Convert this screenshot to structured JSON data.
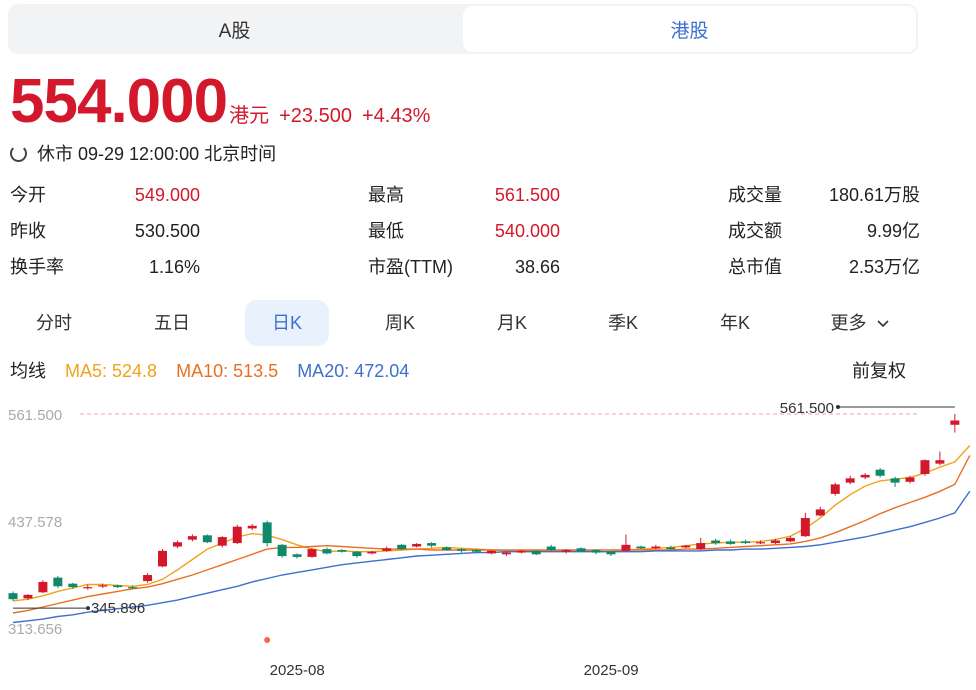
{
  "market_tabs": [
    "A股",
    "港股"
  ],
  "quote": {
    "price": "554.000",
    "currency": "港元",
    "change": "+23.500",
    "change_pct": "+4.43%",
    "status": "休市 09-29 12:00:00 北京时间"
  },
  "stats": {
    "open_label": "今开",
    "open": "549.000",
    "high_label": "最高",
    "high": "561.500",
    "volume_label": "成交量",
    "volume": "180.61万股",
    "prev_close_label": "昨收",
    "prev_close": "530.500",
    "low_label": "最低",
    "low": "540.000",
    "turnover_label": "成交额",
    "turnover": "9.99亿",
    "turnover_rate_label": "换手率",
    "turnover_rate": "1.16%",
    "pe_label": "市盈(TTM)",
    "pe": "38.66",
    "mkt_cap_label": "总市值",
    "mkt_cap": "2.53万亿"
  },
  "period_tabs": [
    "分时",
    "五日",
    "日K",
    "周K",
    "月K",
    "季K",
    "年K",
    "更多"
  ],
  "ma": {
    "label": "均线",
    "ma5": "MA5: 524.8",
    "ma10": "MA10: 513.5",
    "ma20": "MA20: 472.04",
    "adjust": "前复权"
  },
  "colors": {
    "up": "#d3182c",
    "down": "#0e8a6a",
    "ma5": "#f0a21c",
    "ma10": "#e8701e",
    "ma20": "#3f6fce",
    "accent": "#3f6fce"
  },
  "chart_data": {
    "type": "candlestick",
    "y_ticks": [
      "561.500",
      "437.578",
      "313.656"
    ],
    "ylim": [
      313.656,
      561.5
    ],
    "x_labels": [
      {
        "index": 17,
        "label": "2025-08"
      },
      {
        "index": 38,
        "label": "2025-09"
      }
    ],
    "annotations": {
      "high_label": "561.500",
      "low_label": "345.896"
    },
    "candles": [
      {
        "o": 354,
        "c": 347,
        "h": 356,
        "l": 345,
        "up": false
      },
      {
        "o": 348,
        "c": 352,
        "h": 353,
        "l": 346,
        "up": true
      },
      {
        "o": 355,
        "c": 367,
        "h": 369,
        "l": 354,
        "up": true
      },
      {
        "o": 372,
        "c": 362,
        "h": 374,
        "l": 360,
        "up": false
      },
      {
        "o": 365,
        "c": 361,
        "h": 366,
        "l": 359,
        "up": false
      },
      {
        "o": 360,
        "c": 361,
        "h": 364,
        "l": 358,
        "up": true
      },
      {
        "o": 362,
        "c": 363,
        "h": 365,
        "l": 360,
        "up": true
      },
      {
        "o": 363,
        "c": 361,
        "h": 364,
        "l": 360,
        "up": false
      },
      {
        "o": 361,
        "c": 360,
        "h": 363,
        "l": 359,
        "up": false
      },
      {
        "o": 368,
        "c": 375,
        "h": 377,
        "l": 366,
        "up": true
      },
      {
        "o": 385,
        "c": 403,
        "h": 405,
        "l": 384,
        "up": true
      },
      {
        "o": 408,
        "c": 413,
        "h": 415,
        "l": 406,
        "up": true
      },
      {
        "o": 416,
        "c": 420,
        "h": 422,
        "l": 414,
        "up": true
      },
      {
        "o": 421,
        "c": 413,
        "h": 422,
        "l": 412,
        "up": false
      },
      {
        "o": 409,
        "c": 419,
        "h": 420,
        "l": 407,
        "up": true
      },
      {
        "o": 412,
        "c": 431,
        "h": 433,
        "l": 411,
        "up": true
      },
      {
        "o": 429,
        "c": 432,
        "h": 434,
        "l": 427,
        "up": true
      },
      {
        "o": 436,
        "c": 412,
        "h": 438,
        "l": 408,
        "up": false
      },
      {
        "o": 410,
        "c": 397,
        "h": 411,
        "l": 395,
        "up": false
      },
      {
        "o": 399,
        "c": 396,
        "h": 400,
        "l": 394,
        "up": false
      },
      {
        "o": 396,
        "c": 405,
        "h": 406,
        "l": 395,
        "up": true
      },
      {
        "o": 405,
        "c": 400,
        "h": 407,
        "l": 399,
        "up": false
      },
      {
        "o": 404,
        "c": 402,
        "h": 405,
        "l": 401,
        "up": false
      },
      {
        "o": 402,
        "c": 397,
        "h": 403,
        "l": 395,
        "up": false
      },
      {
        "o": 400,
        "c": 402,
        "h": 403,
        "l": 399,
        "up": true
      },
      {
        "o": 403,
        "c": 406,
        "h": 408,
        "l": 402,
        "up": true
      },
      {
        "o": 410,
        "c": 405,
        "h": 411,
        "l": 404,
        "up": false
      },
      {
        "o": 408,
        "c": 411,
        "h": 412,
        "l": 407,
        "up": true
      },
      {
        "o": 412,
        "c": 409,
        "h": 413,
        "l": 407,
        "up": false
      },
      {
        "o": 407,
        "c": 404,
        "h": 408,
        "l": 403,
        "up": false
      },
      {
        "o": 405,
        "c": 403,
        "h": 406,
        "l": 401,
        "up": false
      },
      {
        "o": 404,
        "c": 402,
        "h": 405,
        "l": 401,
        "up": false
      },
      {
        "o": 400,
        "c": 403,
        "h": 404,
        "l": 399,
        "up": true
      },
      {
        "o": 399,
        "c": 401,
        "h": 402,
        "l": 397,
        "up": true
      },
      {
        "o": 401,
        "c": 403,
        "h": 404,
        "l": 400,
        "up": true
      },
      {
        "o": 403,
        "c": 399,
        "h": 404,
        "l": 398,
        "up": false
      },
      {
        "o": 408,
        "c": 404,
        "h": 410,
        "l": 403,
        "up": false
      },
      {
        "o": 402,
        "c": 404,
        "h": 405,
        "l": 400,
        "up": true
      },
      {
        "o": 406,
        "c": 402,
        "h": 407,
        "l": 401,
        "up": false
      },
      {
        "o": 404,
        "c": 401,
        "h": 405,
        "l": 399,
        "up": false
      },
      {
        "o": 402,
        "c": 399,
        "h": 403,
        "l": 397,
        "up": false
      },
      {
        "o": 403,
        "c": 410,
        "h": 422,
        "l": 402,
        "up": true
      },
      {
        "o": 408,
        "c": 406,
        "h": 409,
        "l": 405,
        "up": false
      },
      {
        "o": 406,
        "c": 408,
        "h": 410,
        "l": 405,
        "up": true
      },
      {
        "o": 407,
        "c": 405,
        "h": 409,
        "l": 404,
        "up": false
      },
      {
        "o": 407,
        "c": 409,
        "h": 410,
        "l": 406,
        "up": true
      },
      {
        "o": 405,
        "c": 412,
        "h": 418,
        "l": 404,
        "up": true
      },
      {
        "o": 415,
        "c": 412,
        "h": 417,
        "l": 410,
        "up": false
      },
      {
        "o": 414,
        "c": 411,
        "h": 416,
        "l": 410,
        "up": false
      },
      {
        "o": 414,
        "c": 412,
        "h": 416,
        "l": 411,
        "up": false
      },
      {
        "o": 412,
        "c": 413,
        "h": 415,
        "l": 411,
        "up": true
      },
      {
        "o": 412,
        "c": 415,
        "h": 417,
        "l": 411,
        "up": true
      },
      {
        "o": 414,
        "c": 418,
        "h": 420,
        "l": 413,
        "up": true
      },
      {
        "o": 420,
        "c": 441,
        "h": 447,
        "l": 419,
        "up": true
      },
      {
        "o": 444,
        "c": 451,
        "h": 454,
        "l": 443,
        "up": true
      },
      {
        "o": 469,
        "c": 480,
        "h": 482,
        "l": 467,
        "up": true
      },
      {
        "o": 482,
        "c": 487,
        "h": 490,
        "l": 480,
        "up": true
      },
      {
        "o": 488,
        "c": 491,
        "h": 493,
        "l": 486,
        "up": true
      },
      {
        "o": 497,
        "c": 490,
        "h": 499,
        "l": 488,
        "up": false
      },
      {
        "o": 487,
        "c": 482,
        "h": 489,
        "l": 477,
        "up": false
      },
      {
        "o": 483,
        "c": 488,
        "h": 490,
        "l": 481,
        "up": true
      },
      {
        "o": 492,
        "c": 508,
        "h": 509,
        "l": 490,
        "up": true
      },
      {
        "o": 504,
        "c": 508,
        "h": 518,
        "l": 502,
        "up": true
      },
      {
        "o": 549,
        "c": 554,
        "h": 561.5,
        "l": 540,
        "up": true
      }
    ],
    "series": [
      {
        "name": "MA5",
        "color": "#f0a21c",
        "values": [
          345,
          347,
          351,
          356,
          360,
          364,
          364,
          363,
          362,
          364,
          370,
          381,
          393,
          405,
          412,
          419,
          423,
          421,
          416,
          410,
          405,
          402,
          403,
          402,
          402,
          403,
          404,
          405,
          406,
          407,
          406,
          405,
          404,
          403,
          403,
          403,
          403,
          403,
          403,
          402,
          402,
          404,
          405,
          406,
          407,
          409,
          411,
          412,
          413,
          413,
          414,
          416,
          420,
          429,
          441,
          456,
          468,
          478,
          484,
          486,
          488,
          493,
          500,
          506,
          525
        ]
      },
      {
        "name": "MA10",
        "color": "#e8701e",
        "values": [
          331,
          334,
          338,
          342,
          346,
          350,
          353,
          356,
          359,
          361,
          365,
          370,
          375,
          381,
          387,
          393,
          399,
          405,
          407,
          407,
          408,
          409,
          408,
          407,
          406,
          405,
          405,
          405,
          404,
          404,
          404,
          404,
          404,
          404,
          404,
          404,
          404,
          404,
          404,
          404,
          404,
          404,
          404,
          404,
          404,
          405,
          405,
          406,
          407,
          408,
          409,
          410,
          411,
          414,
          418,
          424,
          431,
          438,
          446,
          453,
          459,
          465,
          472,
          480,
          513.5
        ]
      },
      {
        "name": "MA20",
        "color": "#3f6fce",
        "values": [
          320,
          322,
          324,
          327,
          329,
          332,
          334,
          336,
          338,
          340,
          343,
          346,
          350,
          354,
          358,
          362,
          367,
          371,
          375,
          378,
          381,
          384,
          387,
          389,
          391,
          393,
          395,
          397,
          398,
          399,
          400,
          401,
          401,
          402,
          402,
          402,
          402,
          402,
          402,
          402,
          402,
          402,
          402,
          403,
          403,
          403,
          403,
          404,
          404,
          405,
          405,
          406,
          407,
          408,
          410,
          413,
          416,
          419,
          423,
          427,
          431,
          436,
          441,
          447,
          472.04
        ]
      }
    ]
  }
}
